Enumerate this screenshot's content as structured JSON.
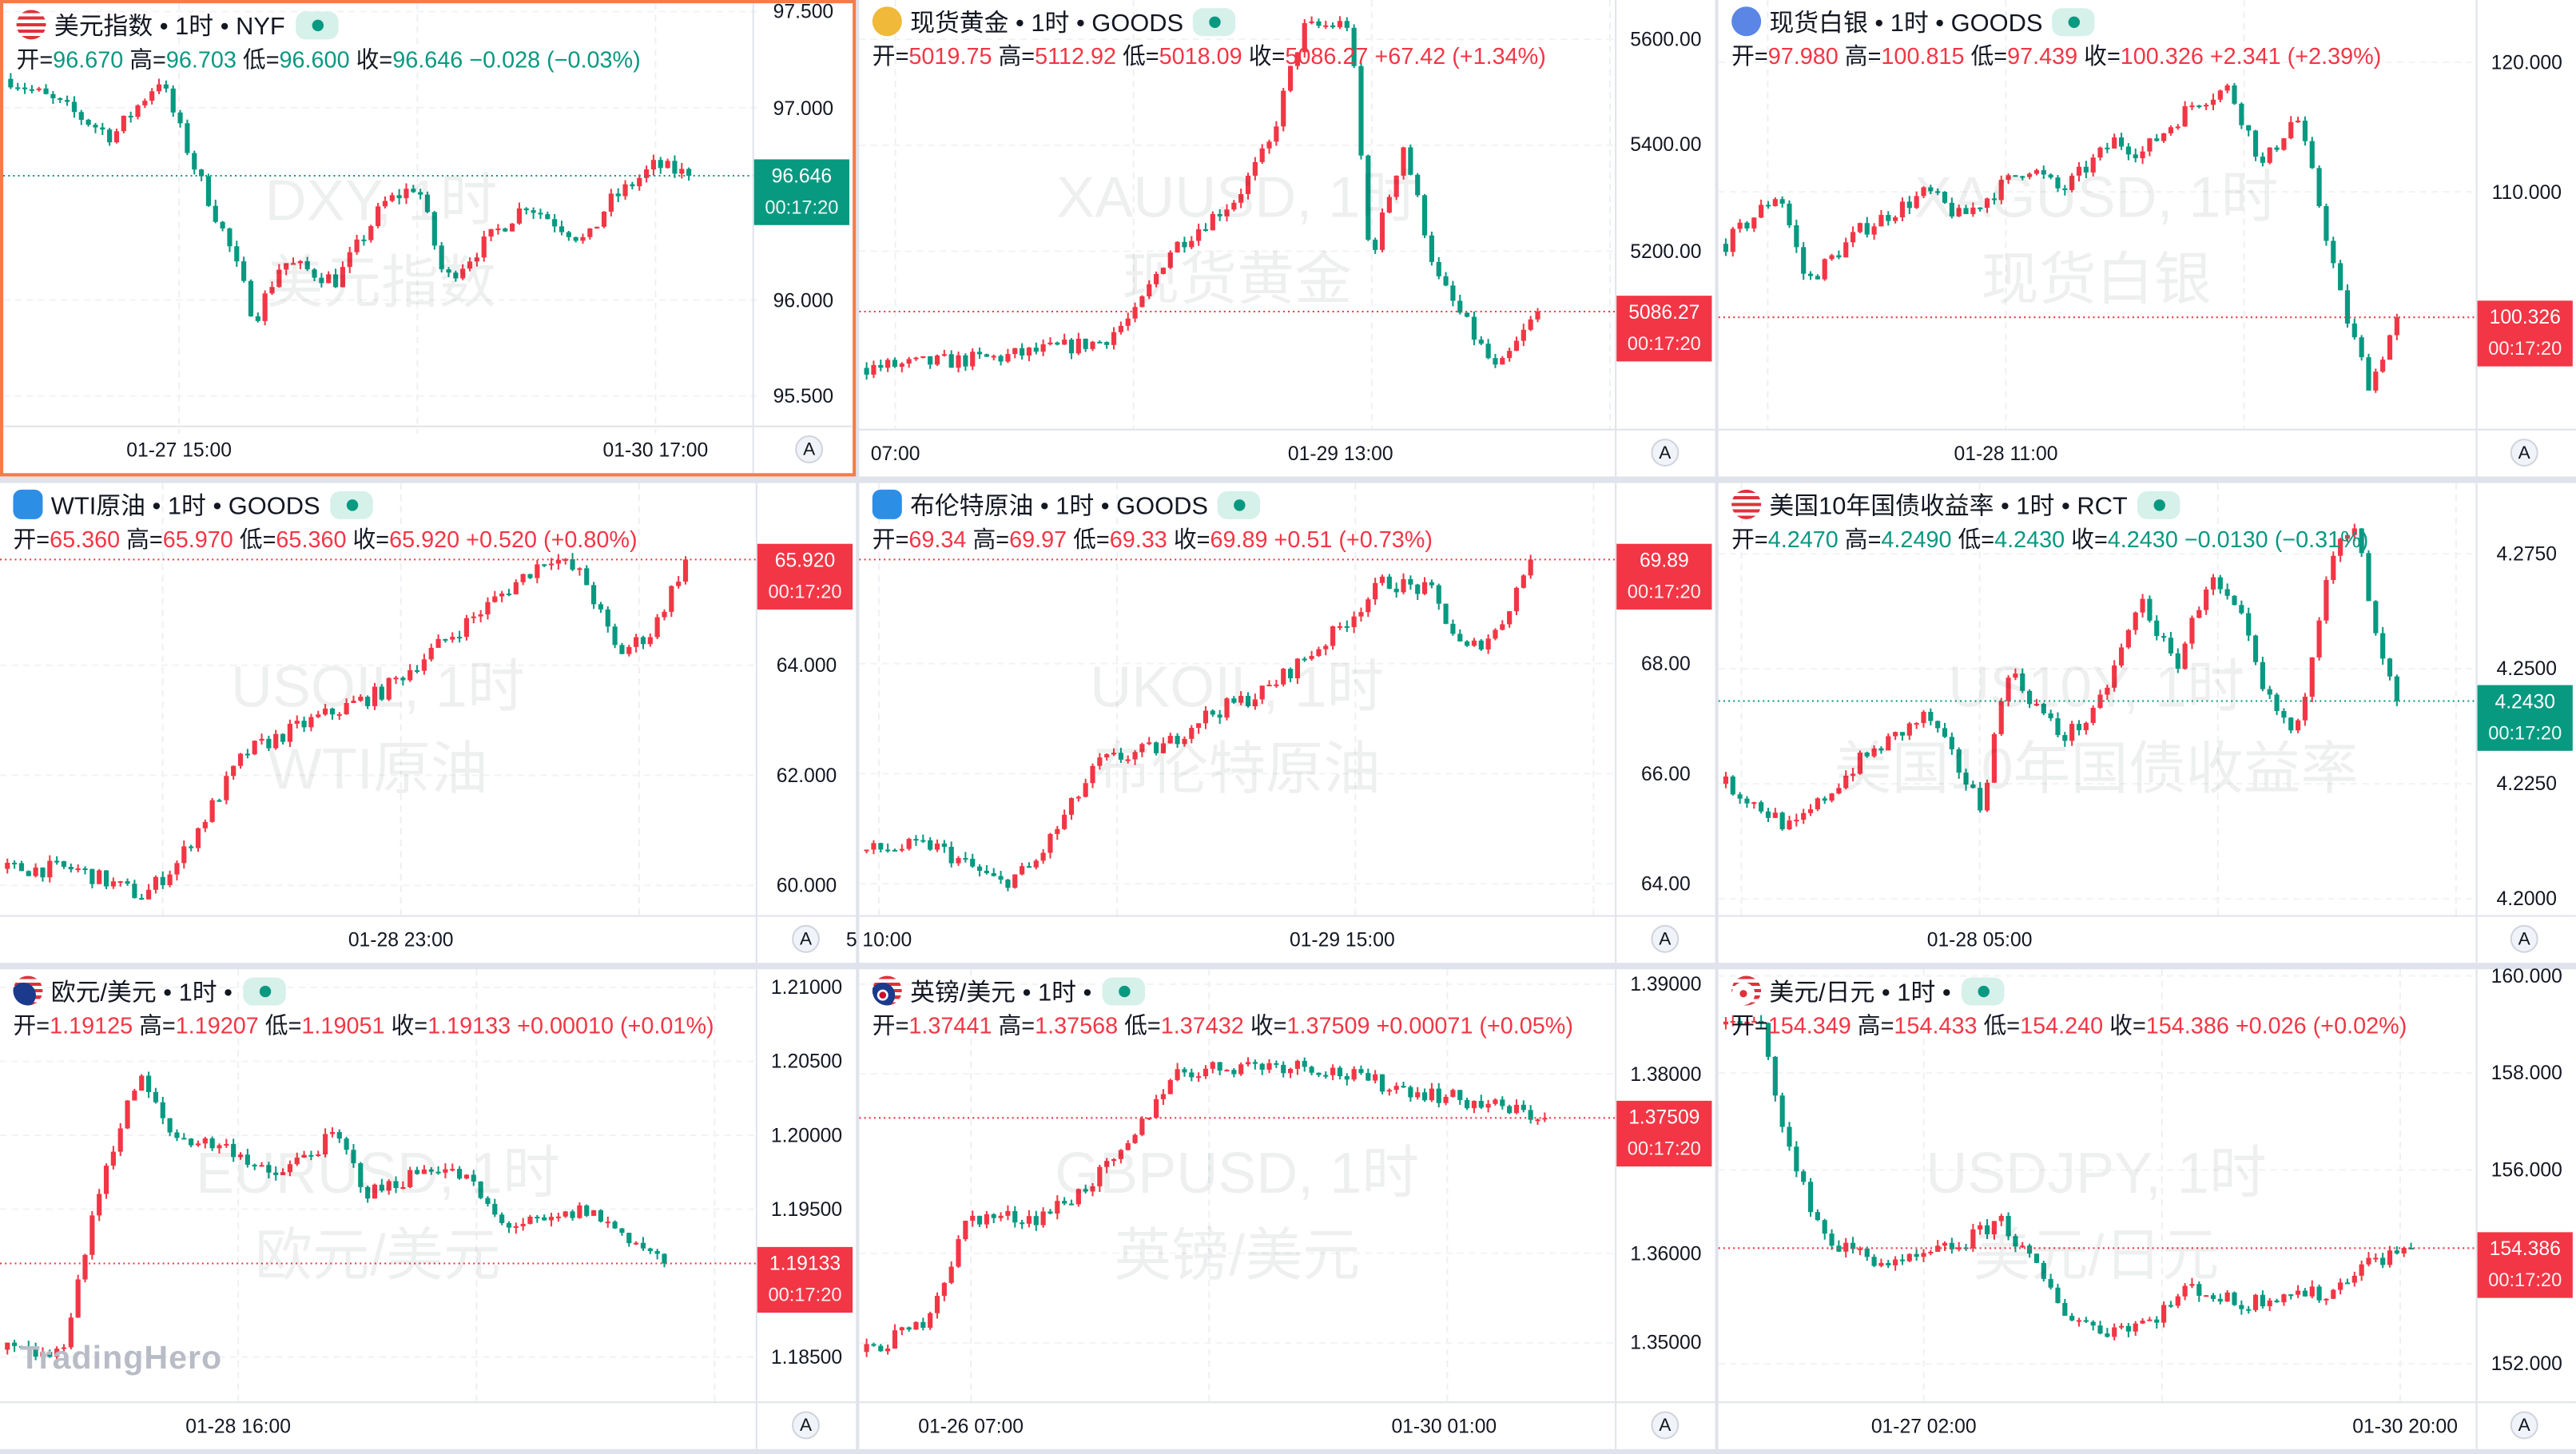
{
  "labels": {
    "open": "开=",
    "high": "高=",
    "low": "低=",
    "close": "收="
  },
  "logo": "TradingHero",
  "colors": {
    "up": "#f23645",
    "down": "#089981",
    "selected_border": "#f57c48",
    "live_badge": "#089981"
  },
  "panels": [
    {
      "title": "美元指数 • 1时 • NYF",
      "icon": "us-flag-icon",
      "selected": true,
      "direction": "down",
      "ohlc": {
        "open": "96.670",
        "high": "96.703",
        "low": "96.600",
        "close": "96.646"
      },
      "change": "−0.028 (−0.03%)",
      "y_axis_ticks": [
        "97.500",
        "97.000",
        "96.000",
        "95.500"
      ],
      "y_range": [
        95.304,
        97.543
      ],
      "last_price": "96.646",
      "countdown": "00:17:20",
      "time_labels": [
        "01-27 15:00",
        "01-30 17:00"
      ],
      "watermark": [
        "DXY, 1时",
        "美元指数"
      ],
      "auto_scale_label": "A"
    },
    {
      "title": "现货黄金 • 1时 • GOODS",
      "icon": "gold-icon",
      "selected": false,
      "direction": "up",
      "ohlc": {
        "open": "5019.75",
        "high": "5112.92",
        "low": "5018.09",
        "close": "5086.27"
      },
      "change": "+67.42 (+1.34%)",
      "y_axis_ticks": [
        "5600.00",
        "5400.00",
        "5200.00"
      ],
      "y_range": [
        4862,
        5674
      ],
      "last_price": "5086.27",
      "countdown": "00:17:20",
      "time_labels": [
        "07:00",
        "01-29 13:00"
      ],
      "watermark": [
        "XAUUSD, 1时",
        "现货黄金"
      ],
      "auto_scale_label": "A"
    },
    {
      "title": "现货白银 • 1时 • GOODS",
      "icon": "silver-icon",
      "selected": false,
      "direction": "up",
      "ohlc": {
        "open": "97.980",
        "high": "100.815",
        "low": "97.439",
        "close": "100.326"
      },
      "change": "+2.341 (+2.39%)",
      "y_axis_ticks": [
        "120.000",
        "110.000"
      ],
      "y_range": [
        91.6,
        124.8
      ],
      "last_price": "100.326",
      "countdown": "00:17:20",
      "time_labels": [
        "01-28 11:00"
      ],
      "watermark": [
        "XAGUSD, 1时",
        "现货白银"
      ],
      "auto_scale_label": "A"
    },
    {
      "title": "WTI原油 • 1时 • GOODS",
      "icon": "oil-icon",
      "selected": false,
      "direction": "up",
      "ohlc": {
        "open": "65.360",
        "high": "65.970",
        "low": "65.360",
        "close": "65.920"
      },
      "change": "+0.520 (+0.80%)",
      "y_axis_ticks": [
        "64.000",
        "62.000",
        "60.000"
      ],
      "y_range": [
        59.43,
        67.31
      ],
      "last_price": "65.920",
      "countdown": "00:17:20",
      "time_labels": [
        "01-28 23:00"
      ],
      "watermark": [
        "USOIL, 1时",
        "WTI原油"
      ],
      "auto_scale_label": "A"
    },
    {
      "title": "布伦特原油 • 1时 • GOODS",
      "icon": "oil-icon",
      "selected": false,
      "direction": "up",
      "ohlc": {
        "open": "69.34",
        "high": "69.97",
        "low": "69.33",
        "close": "69.89"
      },
      "change": "+0.51 (+0.73%)",
      "y_axis_ticks": [
        "68.00",
        "66.00",
        "64.00"
      ],
      "y_range": [
        63.4,
        71.28
      ],
      "last_price": "69.89",
      "countdown": "00:17:20",
      "time_labels": [
        "5 10:00",
        "01-29 15:00"
      ],
      "watermark": [
        "UKOIL, 1时",
        "布伦特原油"
      ],
      "auto_scale_label": "A"
    },
    {
      "title": "美国10年国债收益率 • 1时 • RCT",
      "icon": "us-flag-icon",
      "selected": false,
      "direction": "down",
      "ohlc": {
        "open": "4.2470",
        "high": "4.2490",
        "low": "4.2430",
        "close": "4.2430"
      },
      "change": "−0.0130 (−0.31%)",
      "y_axis_ticks": [
        "4.2750",
        "4.2500",
        "4.2250",
        "4.2000"
      ],
      "y_range": [
        4.1961,
        4.2904
      ],
      "last_price": "4.2430",
      "countdown": "00:17:20",
      "time_labels": [
        "01-28 05:00"
      ],
      "watermark": [
        "US10Y, 1时",
        "美国10年国债收益率"
      ],
      "auto_scale_label": "A"
    },
    {
      "title": "欧元/美元 • 1时 •",
      "icon": "eur-usd-flags-icon",
      "selected": false,
      "direction": "up",
      "ohlc": {
        "open": "1.19125",
        "high": "1.19207",
        "low": "1.19051",
        "close": "1.19133"
      },
      "change": "+0.00010 (+0.01%)",
      "y_axis_ticks": [
        "1.21000",
        "1.20500",
        "1.20000",
        "1.19500",
        "1.18500"
      ],
      "y_range": [
        1.18189,
        1.21122
      ],
      "last_price": "1.19133",
      "countdown": "00:17:20",
      "time_labels": [
        "01-28 16:00"
      ],
      "watermark": [
        "EURUSD, 1时",
        "欧元/美元"
      ],
      "auto_scale_label": "A"
    },
    {
      "title": "英镑/美元 • 1时 •",
      "icon": "gbp-usd-flags-icon",
      "selected": false,
      "direction": "up",
      "ohlc": {
        "open": "1.37441",
        "high": "1.37568",
        "low": "1.37432",
        "close": "1.37509"
      },
      "change": "+0.00071 (+0.05%)",
      "y_axis_ticks": [
        "1.39000",
        "1.38000",
        "1.36000",
        "1.35000"
      ],
      "y_range": [
        1.3433,
        1.39165
      ],
      "last_price": "1.37509",
      "countdown": "00:17:20",
      "time_labels": [
        "01-26 07:00",
        "01-30 01:00"
      ],
      "watermark": [
        "GBPUSD, 1时",
        "英镑/美元"
      ],
      "auto_scale_label": "A"
    },
    {
      "title": "美元/日元 • 1时 •",
      "icon": "usd-jpy-flags-icon",
      "selected": false,
      "direction": "up",
      "ohlc": {
        "open": "154.349",
        "high": "154.433",
        "low": "154.240",
        "close": "154.386"
      },
      "change": "+0.026 (+0.02%)",
      "y_axis_ticks": [
        "160.000",
        "158.000",
        "156.000",
        "152.000"
      ],
      "y_range": [
        151.19,
        160.136
      ],
      "last_price": "154.386",
      "countdown": "00:17:20",
      "time_labels": [
        "01-27 02:00",
        "01-30 20:00"
      ],
      "watermark": [
        "USDJPY, 1时",
        "美元/日元"
      ],
      "auto_scale_label": "A"
    }
  ]
}
